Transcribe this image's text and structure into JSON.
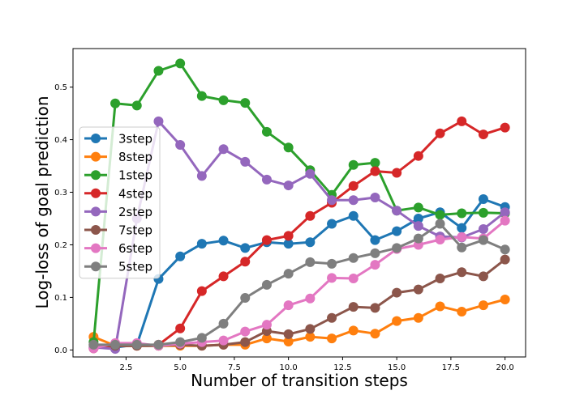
{
  "chart_data": {
    "type": "line",
    "xlabel": "Number of transition steps",
    "ylabel": "Log-loss of goal prediction",
    "xlim": [
      0.05,
      20.95
    ],
    "ylim": [
      -0.0133,
      0.5733
    ],
    "x_ticks": [
      2.5,
      5.0,
      7.5,
      10.0,
      12.5,
      15.0,
      17.5,
      20.0
    ],
    "x_tick_labels": [
      "2.5",
      "5.0",
      "7.5",
      "10.0",
      "12.5",
      "15.0",
      "17.5",
      "20.0"
    ],
    "y_ticks": [
      0.0,
      0.1,
      0.2,
      0.3,
      0.4,
      0.5
    ],
    "y_tick_labels": [
      "0.0",
      "0.1",
      "0.2",
      "0.3",
      "0.4",
      "0.5"
    ],
    "grid": false,
    "legend_position": "center-left",
    "x": [
      1,
      2,
      3,
      4,
      5,
      6,
      7,
      8,
      9,
      10,
      11,
      12,
      13,
      14,
      15,
      16,
      17,
      18,
      19,
      20
    ],
    "series": [
      {
        "name": "3step",
        "color": "#1f77b4",
        "values": [
          0.005,
          0.005,
          0.01,
          0.135,
          0.178,
          0.202,
          0.208,
          0.194,
          0.205,
          0.202,
          0.205,
          0.24,
          0.255,
          0.209,
          0.226,
          0.25,
          0.262,
          0.232,
          0.287,
          0.272
        ]
      },
      {
        "name": "8step",
        "color": "#ff7f0e",
        "values": [
          0.025,
          0.008,
          0.008,
          0.008,
          0.008,
          0.008,
          0.01,
          0.01,
          0.022,
          0.016,
          0.025,
          0.022,
          0.037,
          0.031,
          0.055,
          0.061,
          0.083,
          0.073,
          0.085,
          0.096
        ]
      },
      {
        "name": "1step",
        "color": "#2ca02c",
        "values": [
          0.015,
          0.469,
          0.465,
          0.531,
          0.545,
          0.483,
          0.475,
          0.47,
          0.415,
          0.385,
          0.342,
          0.295,
          0.352,
          0.356,
          0.265,
          0.271,
          0.257,
          0.26,
          0.261,
          0.26
        ]
      },
      {
        "name": "4step",
        "color": "#d62728",
        "values": [
          0.003,
          0.008,
          0.008,
          0.01,
          0.041,
          0.112,
          0.14,
          0.168,
          0.209,
          0.217,
          0.255,
          0.28,
          0.312,
          0.34,
          0.337,
          0.369,
          0.412,
          0.435,
          0.41,
          0.423
        ]
      },
      {
        "name": "2step",
        "color": "#9467bd",
        "values": [
          0.005,
          0.002,
          0.25,
          0.435,
          0.39,
          0.331,
          0.382,
          0.358,
          0.324,
          0.313,
          0.335,
          0.285,
          0.285,
          0.29,
          0.265,
          0.236,
          0.216,
          0.214,
          0.23,
          0.262
        ]
      },
      {
        "name": "7step",
        "color": "#8c564b",
        "values": [
          0.01,
          0.008,
          0.008,
          0.008,
          0.01,
          0.008,
          0.01,
          0.015,
          0.036,
          0.03,
          0.04,
          0.061,
          0.082,
          0.08,
          0.109,
          0.115,
          0.136,
          0.148,
          0.14,
          0.172
        ]
      },
      {
        "name": "6step",
        "color": "#e377c2",
        "values": [
          0.003,
          0.013,
          0.013,
          0.008,
          0.012,
          0.015,
          0.018,
          0.035,
          0.048,
          0.085,
          0.098,
          0.137,
          0.136,
          0.162,
          0.192,
          0.2,
          0.21,
          0.215,
          0.212,
          0.246
        ]
      },
      {
        "name": "5step",
        "color": "#7f7f7f",
        "values": [
          0.01,
          0.01,
          0.01,
          0.01,
          0.015,
          0.023,
          0.05,
          0.099,
          0.124,
          0.145,
          0.167,
          0.164,
          0.175,
          0.184,
          0.194,
          0.212,
          0.24,
          0.195,
          0.209,
          0.191
        ]
      }
    ]
  }
}
